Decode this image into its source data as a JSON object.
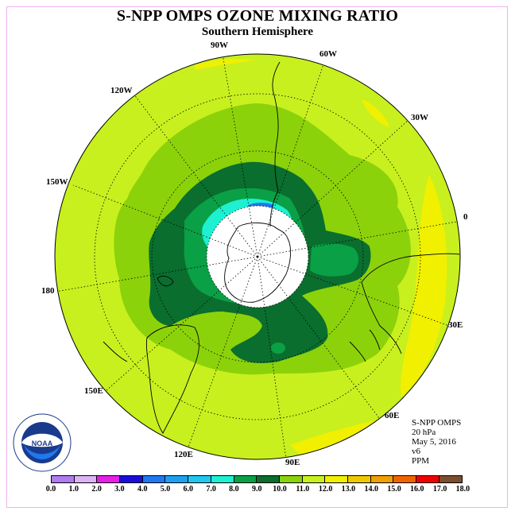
{
  "title": "S-NPP OMPS OZONE MIXING RATIO",
  "subtitle": "Southern Hemisphere",
  "longitude_labels": [
    "90W",
    "60W",
    "30W",
    "0",
    "30E",
    "60E",
    "90E",
    "120E",
    "150E",
    "180",
    "150W",
    "120W"
  ],
  "info": {
    "instrument": "S-NPP OMPS",
    "pressure": "20 hPa",
    "date": "May 5, 2016",
    "version": "v6",
    "units": "PPM"
  },
  "logo": {
    "text": "NOAA",
    "ring_text": "NATIONAL OCEANIC AND ATMOSPHERIC ADMINISTRATION · U.S. DEPARTMENT OF COMMERCE"
  },
  "colorbar": {
    "ticks": [
      "0.0",
      "1.0",
      "2.0",
      "3.0",
      "4.0",
      "5.0",
      "6.0",
      "7.0",
      "8.0",
      "9.0",
      "10.0",
      "11.0",
      "12.0",
      "13.0",
      "14.0",
      "15.0",
      "16.0",
      "17.0",
      "18.0"
    ],
    "colors": [
      "#b07cf0",
      "#dcb4f4",
      "#e61ee6",
      "#1a0ddc",
      "#1e78f0",
      "#1ea0f0",
      "#1ec8f0",
      "#1ef0d2",
      "#0aa046",
      "#0a6e2e",
      "#8cd20a",
      "#c8f01e",
      "#f0f000",
      "#f0c800",
      "#f0a000",
      "#f06400",
      "#f00000",
      "#7a4e2e"
    ]
  },
  "map": {
    "projection": "south polar stereographic",
    "levels_ppm": {
      "white_core": "no data",
      "cyan": "7-8",
      "blue_patch": "5-6",
      "green": "8-9",
      "dark_green": "9-10",
      "lime_green": "10-11",
      "yellow_green": "11-12",
      "yellow": "12-13"
    }
  }
}
